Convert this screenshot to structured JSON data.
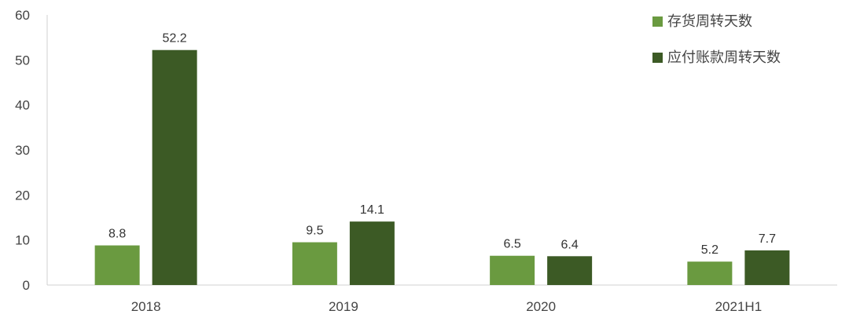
{
  "chart_data": {
    "type": "bar",
    "categories": [
      "2018",
      "2019",
      "2020",
      "2021H1"
    ],
    "series": [
      {
        "name": "存货周转天数",
        "values": [
          8.8,
          9.5,
          6.5,
          5.2
        ],
        "color": "#6a9a40"
      },
      {
        "name": "应付账款周转天数",
        "values": [
          52.2,
          14.1,
          6.4,
          7.7
        ],
        "color": "#3c5a25"
      }
    ],
    "yticks": [
      0,
      10,
      20,
      30,
      40,
      50,
      60
    ],
    "ylim": [
      0,
      60
    ],
    "title": "",
    "xlabel": "",
    "ylabel": "",
    "grid": false,
    "legend_position": "top-right",
    "data_labels": true
  }
}
